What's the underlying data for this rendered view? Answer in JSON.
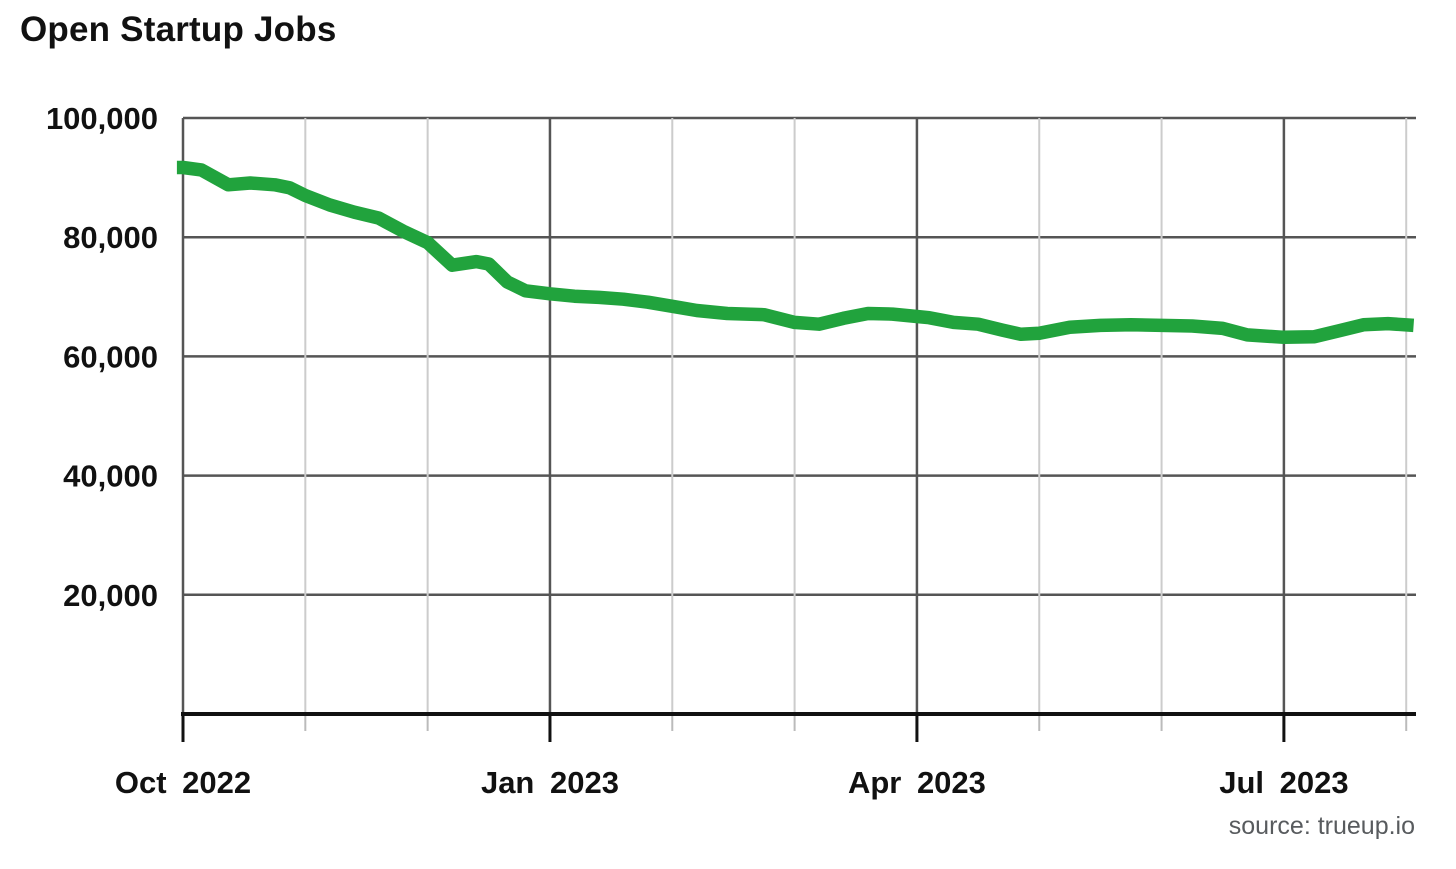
{
  "header": {
    "title": "Open Startup Jobs"
  },
  "footer": {
    "source": "source: trueup.io"
  },
  "colors": {
    "line": "#21a33d",
    "grid_major": "#555555",
    "grid_minor": "#cccccc",
    "tick_minor": "#bbbbbb",
    "axis": "#111111",
    "label_text": "#111111",
    "source_text": "#585b5e"
  },
  "chart_data": {
    "type": "line",
    "title": "Open Startup Jobs",
    "source": "source: trueup.io",
    "xlabel": "",
    "ylabel": "",
    "x_unit": "months since Oct 1 2022",
    "xlim": [
      0,
      10.08
    ],
    "ylim": [
      0,
      100000
    ],
    "grid": true,
    "legend": "none",
    "y_ticks": [
      {
        "value": 100000,
        "label": "100,000"
      },
      {
        "value": 80000,
        "label": "80,000"
      },
      {
        "value": 60000,
        "label": "60,000"
      },
      {
        "value": 40000,
        "label": "40,000"
      },
      {
        "value": 20000,
        "label": "20,000"
      }
    ],
    "x_ticks_major": [
      {
        "pos": 0,
        "label": "Oct 2022"
      },
      {
        "pos": 3,
        "label": "Jan 2023"
      },
      {
        "pos": 6,
        "label": "Apr 2023"
      },
      {
        "pos": 9,
        "label": "Jul 2023"
      }
    ],
    "x_ticks_minor": [
      1,
      2,
      4,
      5,
      7,
      8,
      10
    ],
    "series": [
      {
        "name": "Open startup jobs",
        "color": "#21a33d",
        "points": [
          [
            -0.05,
            91700
          ],
          [
            0.0,
            91700
          ],
          [
            0.15,
            91300
          ],
          [
            0.37,
            88800
          ],
          [
            0.55,
            89100
          ],
          [
            0.75,
            88800
          ],
          [
            0.87,
            88300
          ],
          [
            1.0,
            87000
          ],
          [
            1.2,
            85400
          ],
          [
            1.4,
            84200
          ],
          [
            1.6,
            83200
          ],
          [
            1.8,
            81000
          ],
          [
            2.0,
            79100
          ],
          [
            2.2,
            75300
          ],
          [
            2.4,
            75900
          ],
          [
            2.5,
            75500
          ],
          [
            2.65,
            72500
          ],
          [
            2.8,
            71000
          ],
          [
            3.0,
            70500
          ],
          [
            3.2,
            70100
          ],
          [
            3.4,
            69900
          ],
          [
            3.6,
            69600
          ],
          [
            3.8,
            69100
          ],
          [
            4.0,
            68400
          ],
          [
            4.2,
            67700
          ],
          [
            4.45,
            67200
          ],
          [
            4.75,
            67000
          ],
          [
            5.0,
            65700
          ],
          [
            5.2,
            65400
          ],
          [
            5.4,
            66400
          ],
          [
            5.6,
            67200
          ],
          [
            5.8,
            67100
          ],
          [
            6.0,
            66700
          ],
          [
            6.1,
            66500
          ],
          [
            6.3,
            65700
          ],
          [
            6.5,
            65400
          ],
          [
            6.7,
            64400
          ],
          [
            6.85,
            63700
          ],
          [
            7.0,
            63900
          ],
          [
            7.25,
            64900
          ],
          [
            7.5,
            65200
          ],
          [
            7.75,
            65300
          ],
          [
            8.0,
            65200
          ],
          [
            8.25,
            65100
          ],
          [
            8.5,
            64700
          ],
          [
            8.7,
            63600
          ],
          [
            9.0,
            63200
          ],
          [
            9.25,
            63300
          ],
          [
            9.45,
            64300
          ],
          [
            9.65,
            65300
          ],
          [
            9.85,
            65500
          ],
          [
            10.06,
            65200
          ]
        ]
      }
    ]
  }
}
